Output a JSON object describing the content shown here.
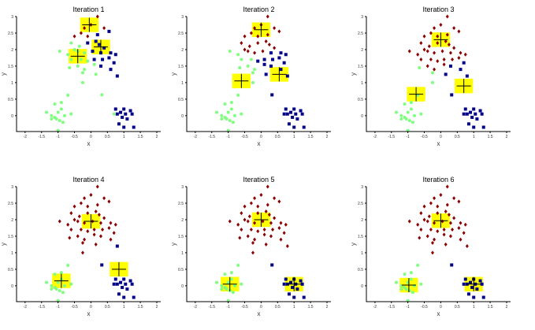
{
  "chart_data": {
    "type": "scatter",
    "xlabel": "x",
    "ylabel": "y",
    "xlim": [
      -2.26,
      2.12
    ],
    "ylim": [
      -0.48,
      3
    ],
    "xticks": [
      "-2",
      "-1.5",
      "-1",
      "-0.5",
      "0",
      "0.5",
      "1",
      "1.5",
      "2"
    ],
    "yticks": [
      "0",
      "0.5",
      "1",
      "1.5",
      "2",
      "2.5",
      "3"
    ],
    "cluster_colors": [
      "#8b0000",
      "#7fff7f",
      "#00008b"
    ],
    "highlight_color": "#ffff00",
    "points": [
      [
        -0.3,
        2.5
      ],
      [
        -0.2,
        2.65
      ],
      [
        0.0,
        2.75
      ],
      [
        0.2,
        3.0
      ],
      [
        0.4,
        2.65
      ],
      [
        -0.5,
        2.4
      ],
      [
        -0.1,
        2.4
      ],
      [
        0.2,
        2.45
      ],
      [
        0.55,
        2.55
      ],
      [
        -0.6,
        2.2
      ],
      [
        -0.35,
        2.1
      ],
      [
        -0.1,
        2.2
      ],
      [
        0.15,
        2.25
      ],
      [
        0.4,
        2.05
      ],
      [
        -0.95,
        1.95
      ],
      [
        -0.7,
        1.85
      ],
      [
        -0.4,
        1.95
      ],
      [
        -0.2,
        1.9
      ],
      [
        0.05,
        1.95
      ],
      [
        0.3,
        1.9
      ],
      [
        0.6,
        1.9
      ],
      [
        0.75,
        1.85
      ],
      [
        -0.6,
        1.7
      ],
      [
        -0.3,
        1.7
      ],
      [
        -0.1,
        1.65
      ],
      [
        0.1,
        1.7
      ],
      [
        0.35,
        1.7
      ],
      [
        0.55,
        1.75
      ],
      [
        -0.65,
        1.45
      ],
      [
        -0.4,
        1.5
      ],
      [
        -0.2,
        1.4
      ],
      [
        0.1,
        1.55
      ],
      [
        0.3,
        1.5
      ],
      [
        0.6,
        1.4
      ],
      [
        0.7,
        1.6
      ],
      [
        -0.25,
        1.3
      ],
      [
        0.15,
        1.25
      ],
      [
        -0.25,
        1.0
      ],
      [
        -0.5,
        2.0
      ],
      [
        0.25,
        2.15
      ],
      [
        -1.35,
        0.1
      ],
      [
        -1.2,
        0.0
      ],
      [
        -1.1,
        -0.05
      ],
      [
        -1.0,
        0.1
      ],
      [
        -0.9,
        0.2
      ],
      [
        -0.8,
        0.0
      ],
      [
        -1.05,
        -0.1
      ],
      [
        -0.95,
        -0.15
      ],
      [
        -0.85,
        -0.2
      ],
      [
        -1.1,
        0.35
      ],
      [
        -0.9,
        0.4
      ],
      [
        -0.6,
        0.05
      ],
      [
        -1.2,
        -0.1
      ],
      [
        -0.7,
        0.62
      ],
      [
        -1.0,
        -0.45
      ],
      [
        0.75,
        0.2
      ],
      [
        0.9,
        0.1
      ],
      [
        1.0,
        0.2
      ],
      [
        1.05,
        0.05
      ],
      [
        1.2,
        0.15
      ],
      [
        1.25,
        0.05
      ],
      [
        0.8,
        0.05
      ],
      [
        0.95,
        -0.05
      ],
      [
        1.1,
        -0.1
      ],
      [
        0.85,
        -0.25
      ],
      [
        1.0,
        -0.35
      ],
      [
        1.3,
        -0.35
      ],
      [
        0.7,
        0.05
      ],
      [
        0.8,
        1.2
      ],
      [
        0.33,
        0.63
      ]
    ],
    "iterations": [
      {
        "title": "Iteration 1",
        "centroids": [
          [
            -0.05,
            2.75
          ],
          [
            -0.4,
            1.8
          ],
          [
            0.3,
            2.08
          ]
        ]
      },
      {
        "title": "Iteration 2",
        "centroids": [
          [
            0.0,
            2.6
          ],
          [
            -0.6,
            1.05
          ],
          [
            0.55,
            1.25
          ]
        ]
      },
      {
        "title": "Iteration 3",
        "centroids": [
          [
            0.0,
            2.3
          ],
          [
            -0.75,
            0.65
          ],
          [
            0.7,
            0.9
          ]
        ]
      },
      {
        "title": "Iteration 4",
        "centroids": [
          [
            0.0,
            1.95
          ],
          [
            -0.9,
            0.15
          ],
          [
            0.85,
            0.5
          ]
        ]
      },
      {
        "title": "Iteration 5",
        "centroids": [
          [
            0.0,
            2.0
          ],
          [
            -0.95,
            0.05
          ],
          [
            1.0,
            0.05
          ]
        ]
      },
      {
        "title": "Iteration 6",
        "centroids": [
          [
            0.0,
            1.97
          ],
          [
            -0.97,
            0.02
          ],
          [
            1.0,
            0.05
          ]
        ]
      }
    ]
  }
}
